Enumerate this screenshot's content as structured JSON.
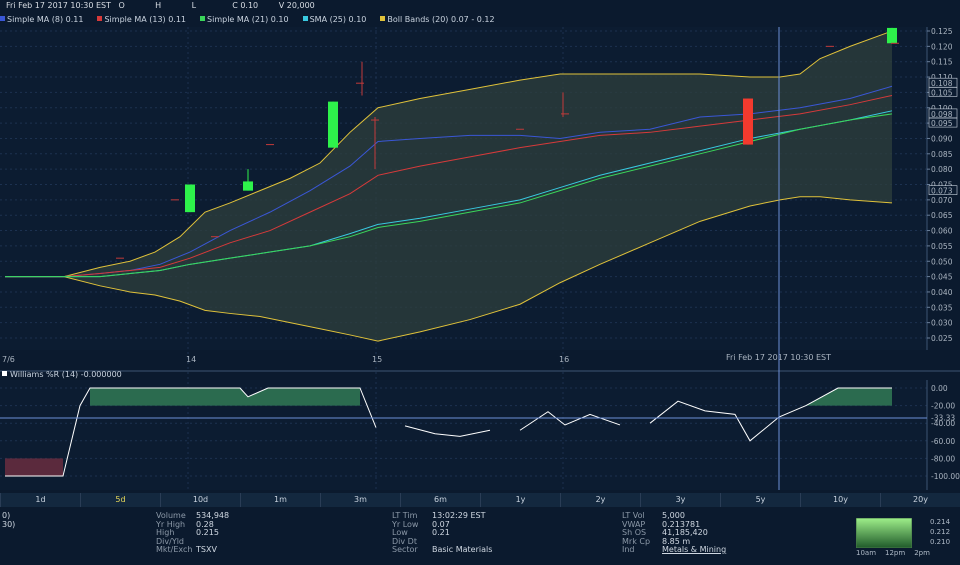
{
  "header": {
    "datetime": "Fri Feb 17 2017 10:30 EST",
    "open_label": "O",
    "high_label": "H",
    "low_label": "L",
    "close_label": "C 0.10",
    "volume_label": "V 20,000"
  },
  "legend": [
    {
      "label": "Simple MA (8) 0.11",
      "color": "#3a57d6"
    },
    {
      "label": "Simple MA (13) 0.11",
      "color": "#d63a3a"
    },
    {
      "label": "Simple MA (21) 0.10",
      "color": "#3ad65a"
    },
    {
      "label": "SMA (25) 0.10",
      "color": "#39c9e0"
    },
    {
      "label": "Boll Bands (20) 0.07 - 0.12",
      "color": "#e0c23a"
    }
  ],
  "colors": {
    "background": "#0b1a2e",
    "bollinger_band": "#e0c23a",
    "up_candle": "#2ef24b",
    "down_candle": "#f23a2e",
    "crosshair": "#6c8fd6"
  },
  "price_axis": {
    "ticks": [
      "0.125",
      "0.120",
      "0.115",
      "0.110",
      "0.105",
      "0.100",
      "0.095",
      "0.090",
      "0.085",
      "0.080",
      "0.075",
      "0.070",
      "0.065",
      "0.060",
      "0.055",
      "0.050",
      "0.045",
      "0.040",
      "0.035",
      "0.030",
      "0.025"
    ],
    "highlight": [
      "0.108",
      "0.105",
      "0.098",
      "0.095",
      "0.073"
    ]
  },
  "x_axis": {
    "labels": [
      "7/6",
      "14",
      "15",
      "16"
    ],
    "crosshair_label": "Fri Feb 17 2017 10:30 EST"
  },
  "williams": {
    "title": "Williams %R (14) -0.000000",
    "ticks": [
      "0.00",
      "-20.00",
      "-33.33",
      "-40.00",
      "-60.00",
      "-80.00",
      "-100.00"
    ]
  },
  "timeframes": [
    {
      "label": "1d",
      "active": false
    },
    {
      "label": "5d",
      "active": true
    },
    {
      "label": "10d",
      "active": false
    },
    {
      "label": "1m",
      "active": false
    },
    {
      "label": "3m",
      "active": false
    },
    {
      "label": "6m",
      "active": false
    },
    {
      "label": "1y",
      "active": false
    },
    {
      "label": "2y",
      "active": false
    },
    {
      "label": "3y",
      "active": false
    },
    {
      "label": "5y",
      "active": false
    },
    {
      "label": "10y",
      "active": false
    },
    {
      "label": "20y",
      "active": false
    }
  ],
  "stats": {
    "col0": [
      "0)",
      "30)"
    ],
    "col1": [
      {
        "k": "Volume",
        "v": "534,948"
      },
      {
        "k": "Yr High",
        "v": "0.28"
      },
      {
        "k": "High",
        "v": "0.215"
      },
      {
        "k": "Div/Yld",
        "v": ""
      },
      {
        "k": "Mkt/Exch",
        "v": "TSXV"
      }
    ],
    "col2": [
      {
        "k": "LT Tim",
        "v": "13:02:29 EST"
      },
      {
        "k": "Yr Low",
        "v": "0.07"
      },
      {
        "k": "Low",
        "v": "0.21"
      },
      {
        "k": "Div Dt",
        "v": ""
      },
      {
        "k": "Sector",
        "v": "Basic Materials"
      }
    ],
    "col3": [
      {
        "k": "LT Vol",
        "v": "5,000"
      },
      {
        "k": "VWAP",
        "v": "0.213781"
      },
      {
        "k": "Sh OS",
        "v": "41,185,420"
      },
      {
        "k": "Mrk Cp",
        "v": "8.85 m"
      },
      {
        "k": "Ind",
        "v": "Metals & Mining"
      }
    ]
  },
  "mini_chart": {
    "ticks": [
      "0.214",
      "0.212",
      "0.210"
    ],
    "xlabels": [
      "10am",
      "12pm",
      "2pm"
    ]
  }
}
